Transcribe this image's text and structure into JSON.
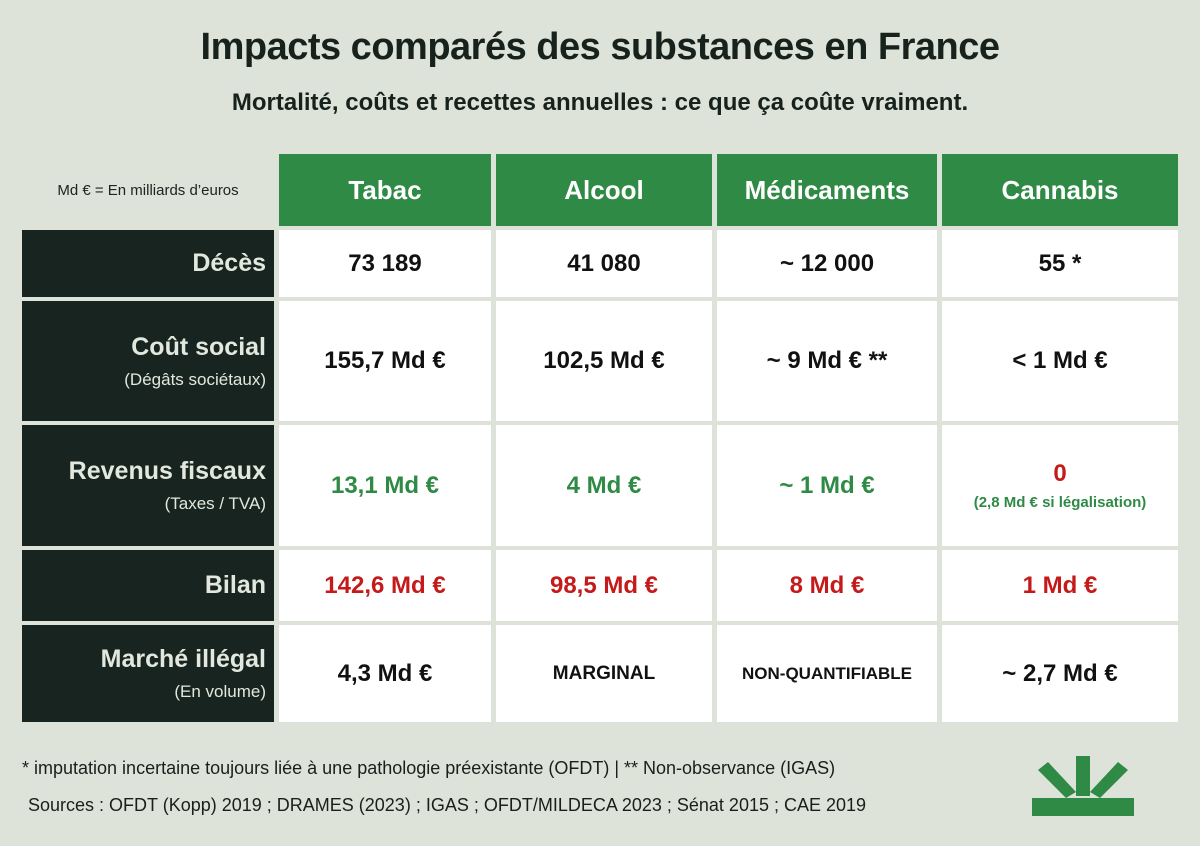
{
  "title": "Impacts comparés des substances en France",
  "subtitle": "Mortalité, coûts et recettes annuelles : ce que ça coûte vraiment.",
  "legend_note": "Md € = En milliards d’euros",
  "columns": [
    "Tabac",
    "Alcool",
    "Médicaments",
    "Cannabis"
  ],
  "rows": [
    {
      "label": "Décès",
      "sublabel": "",
      "cells": [
        "73 189",
        "41 080",
        "~ 12 000",
        "55 *"
      ]
    },
    {
      "label": "Coût social",
      "sublabel": "(Dégâts sociétaux)",
      "cells": [
        "155,7 Md €",
        "102,5 Md €",
        "~ 9 Md € **",
        "< 1 Md €"
      ]
    },
    {
      "label": "Revenus fiscaux",
      "sublabel": "(Taxes / TVA)",
      "cells": [
        "13,1 Md €",
        "4 Md €",
        "~ 1 Md €",
        "0"
      ],
      "cannabis_note": "(2,8 Md € si légalisation)"
    },
    {
      "label": "Bilan",
      "sublabel": "",
      "cells": [
        "142,6 Md €",
        "98,5 Md €",
        "8 Md €",
        "1 Md €"
      ]
    },
    {
      "label": "Marché illégal",
      "sublabel": "(En volume)",
      "cells": [
        "4,3 Md €",
        "MARGINAL",
        "NON-QUANTIFIABLE",
        "~ 2,7 Md €"
      ]
    }
  ],
  "footnote": "* imputation incertaine toujours liée à une pathologie préexistante (OFDT) | ** Non-observance (IGAS)",
  "sources": "Sources : OFDT (Kopp) 2019 ; DRAMES (2023) ; IGAS ; OFDT/MILDECA 2023 ; Sénat 2015 ; CAE 2019",
  "colors": {
    "green": "#2f8a45",
    "dark": "#182420",
    "red": "#c41a1a",
    "background": "#dde3d8"
  },
  "logo_icon": "sunrise-rays-logo"
}
